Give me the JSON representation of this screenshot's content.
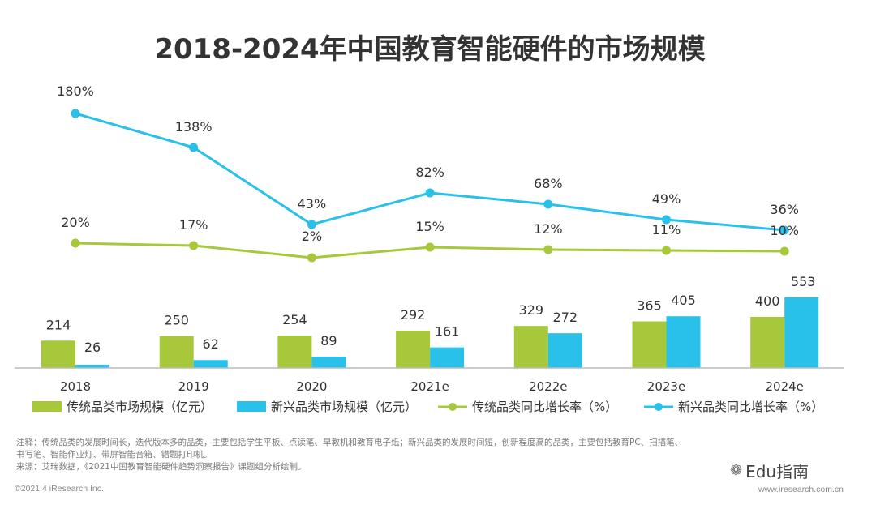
{
  "chart_data": {
    "type": "bar",
    "title": "2018-2024年中国教育智能硬件的市场规模",
    "categories": [
      "2018",
      "2019",
      "2020",
      "2021e",
      "2022e",
      "2023e",
      "2024e"
    ],
    "series": [
      {
        "name": "传统品类市场规模（亿元）",
        "kind": "bar",
        "color": "#a6c83a",
        "values": [
          214,
          250,
          254,
          292,
          329,
          365,
          400
        ]
      },
      {
        "name": "新兴品类市场规模（亿元）",
        "kind": "bar",
        "color": "#29c0ea",
        "values": [
          26,
          62,
          89,
          161,
          272,
          405,
          553
        ]
      },
      {
        "name": "传统品类同比增长率（%）",
        "kind": "line",
        "color": "#a6c83a",
        "values": [
          20,
          17,
          2,
          15,
          12,
          11,
          10
        ]
      },
      {
        "name": "新兴品类同比增长率（%）",
        "kind": "line",
        "color": "#29c0ea",
        "values": [
          180,
          138,
          43,
          82,
          68,
          49,
          36
        ]
      }
    ],
    "bar_axis_max": 700,
    "line_axis_range": [
      -80,
      200
    ],
    "legend_position": "bottom",
    "grid": false,
    "xlabel": "",
    "ylabel": ""
  },
  "notes": [
    "注释：传统品类的发展时间长，迭代版本多的品类，主要包括学生平板、点读笔、早教机和教育电子纸；新兴品类的发展时间短，创新程度高的品类，主要包括教育PC、扫描笔、",
    "书写笔、智能作业灯、带屏智能音箱、错题打印机。",
    "来源：艾瑞数据，《2021中国教育智能硬件趋势洞察报告》课题组分析绘制。"
  ],
  "footer": {
    "copyright": "©2021.4 iResearch Inc.",
    "website": "www.iresearch.com.cn"
  },
  "watermark": {
    "icon": "wechat-icon",
    "text": "Edu指南"
  }
}
